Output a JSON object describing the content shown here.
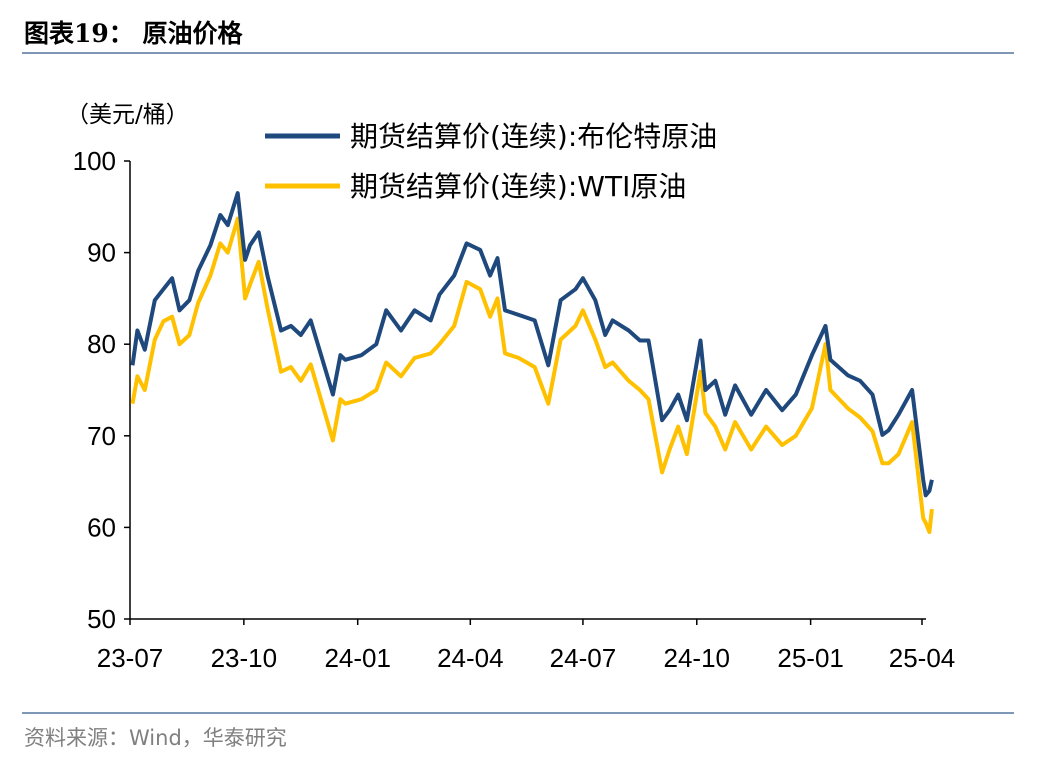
{
  "title": "图表19：  原油价格",
  "source": "资料来源：Wind，华泰研究",
  "chart_data": {
    "type": "line",
    "title": "",
    "ylabel": "（美元/桶）",
    "xlabel": "",
    "ylim": [
      50,
      100
    ],
    "yticks": [
      50,
      60,
      70,
      80,
      90,
      100
    ],
    "xlim": [
      "2023-07-01",
      "2025-04-01"
    ],
    "xticks": [
      {
        "date": "2023-07-01",
        "label": "23-07"
      },
      {
        "date": "2023-10-01",
        "label": "23-10"
      },
      {
        "date": "2024-01-01",
        "label": "24-01"
      },
      {
        "date": "2024-04-01",
        "label": "24-04"
      },
      {
        "date": "2024-07-01",
        "label": "24-07"
      },
      {
        "date": "2024-10-01",
        "label": "24-10"
      },
      {
        "date": "2025-01-01",
        "label": "25-01"
      },
      {
        "date": "2025-04-01",
        "label": "25-04"
      }
    ],
    "legend_position": "top-right",
    "grid": false,
    "x": [
      "2023-07-03",
      "2023-07-07",
      "2023-07-13",
      "2023-07-21",
      "2023-07-28",
      "2023-08-04",
      "2023-08-10",
      "2023-08-18",
      "2023-08-25",
      "2023-09-04",
      "2023-09-12",
      "2023-09-18",
      "2023-09-26",
      "2023-10-02",
      "2023-10-06",
      "2023-10-13",
      "2023-10-20",
      "2023-10-31",
      "2023-11-08",
      "2023-11-16",
      "2023-11-24",
      "2023-12-12",
      "2023-12-18",
      "2023-12-22",
      "2024-01-04",
      "2024-01-16",
      "2024-01-24",
      "2024-02-05",
      "2024-02-16",
      "2024-02-29",
      "2024-03-07",
      "2024-03-19",
      "2024-03-29",
      "2024-04-09",
      "2024-04-17",
      "2024-04-23",
      "2024-04-29",
      "2024-05-10",
      "2024-05-23",
      "2024-06-03",
      "2024-06-13",
      "2024-06-25",
      "2024-07-01",
      "2024-07-11",
      "2024-07-19",
      "2024-07-25",
      "2024-08-07",
      "2024-08-16",
      "2024-08-23",
      "2024-09-03",
      "2024-09-09",
      "2024-09-16",
      "2024-09-23",
      "2024-10-04",
      "2024-10-08",
      "2024-10-16",
      "2024-10-24",
      "2024-11-01",
      "2024-11-14",
      "2024-11-26",
      "2024-12-09",
      "2024-12-20",
      "2025-01-02",
      "2025-01-13",
      "2025-01-17",
      "2025-01-31",
      "2025-02-10",
      "2025-02-20",
      "2025-02-28",
      "2025-03-05",
      "2025-03-13",
      "2025-03-24",
      "2025-04-02",
      "2025-04-04",
      "2025-04-07",
      "2025-04-09"
    ],
    "series": [
      {
        "name": "期货结算价(连续):布伦特原油",
        "color": "#1F497D",
        "values": [
          77.7,
          81.5,
          79.4,
          84.8,
          86.0,
          87.2,
          83.7,
          84.8,
          88.0,
          90.8,
          94.1,
          93.0,
          96.5,
          89.2,
          90.8,
          92.2,
          87.5,
          81.5,
          82.0,
          81.0,
          82.6,
          74.5,
          78.8,
          78.3,
          78.8,
          80.0,
          83.7,
          81.5,
          83.7,
          82.6,
          85.4,
          87.5,
          91.0,
          90.3,
          87.5,
          89.4,
          83.7,
          83.2,
          82.6,
          77.7,
          84.8,
          86.0,
          87.2,
          84.8,
          81.0,
          82.6,
          81.5,
          80.4,
          80.4,
          71.7,
          72.8,
          74.5,
          71.7,
          80.4,
          75.0,
          76.0,
          72.3,
          75.5,
          72.3,
          75.0,
          72.8,
          74.5,
          78.8,
          82.0,
          78.3,
          76.6,
          76.0,
          74.5,
          70.1,
          70.6,
          72.3,
          75.0,
          65.2,
          63.5,
          64.0,
          65.2
        ]
      },
      {
        "name": "期货结算价(连续):WTI原油",
        "color": "#FFC000",
        "values": [
          73.5,
          76.5,
          75.0,
          80.5,
          82.5,
          83.0,
          80.0,
          81.0,
          84.5,
          87.5,
          91.0,
          90.0,
          93.7,
          85.0,
          86.5,
          89.0,
          84.0,
          77.0,
          77.5,
          76.0,
          77.8,
          69.5,
          74.0,
          73.5,
          74.0,
          75.0,
          78.0,
          76.5,
          78.5,
          79.0,
          80.0,
          82.0,
          86.8,
          86.0,
          83.0,
          85.0,
          79.0,
          78.5,
          77.5,
          73.5,
          80.5,
          82.0,
          83.7,
          80.5,
          77.5,
          78.0,
          76.0,
          75.0,
          74.0,
          66.0,
          68.5,
          71.0,
          68.0,
          77.0,
          72.5,
          71.0,
          68.5,
          71.5,
          68.5,
          71.0,
          69.0,
          70.0,
          73.0,
          80.0,
          75.0,
          73.0,
          72.0,
          70.5,
          67.0,
          67.0,
          68.0,
          71.5,
          61.0,
          60.5,
          59.5,
          62.0
        ]
      }
    ]
  }
}
